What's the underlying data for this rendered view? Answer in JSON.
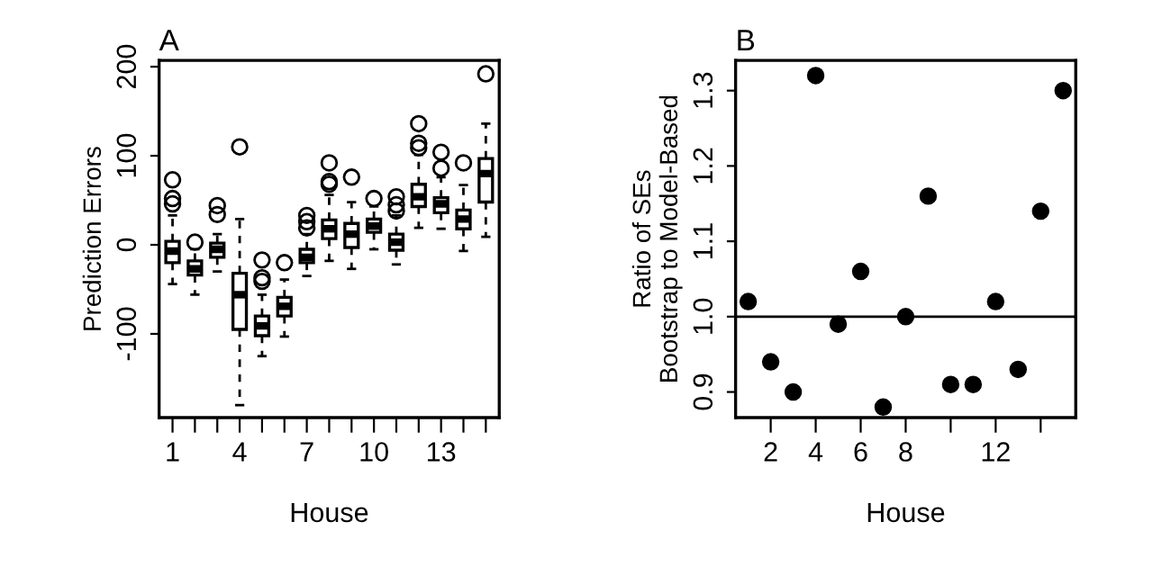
{
  "chart_data": [
    {
      "type": "box",
      "title": "A",
      "xlabel": "House",
      "ylabel": "Prediction Errors",
      "categories": [
        "1",
        null,
        null,
        "4",
        null,
        null,
        "7",
        null,
        null,
        "10",
        null,
        null,
        "13",
        null,
        null
      ],
      "ylim": [
        -194,
        207
      ],
      "yticks": [
        -100,
        0,
        100,
        200
      ],
      "grid": false,
      "color": "#000000",
      "boxes": [
        {
          "low": -44,
          "q1": -20,
          "median": -7,
          "q3": 4,
          "high": 33,
          "outliers": [
            73,
            52,
            46
          ]
        },
        {
          "low": -56,
          "q1": -34,
          "median": -27,
          "q3": -18,
          "high": -5,
          "outliers": [
            3
          ]
        },
        {
          "low": -30,
          "q1": -14,
          "median": -5,
          "q3": 2,
          "high": 12,
          "outliers": [
            44,
            34
          ]
        },
        {
          "low": -180,
          "q1": -95,
          "median": -56,
          "q3": -32,
          "high": 29,
          "outliers": [
            110
          ]
        },
        {
          "low": -125,
          "q1": -102,
          "median": -91,
          "q3": -80,
          "high": -56,
          "outliers": [
            -41,
            -37,
            -17
          ]
        },
        {
          "low": -103,
          "q1": -80,
          "median": -69,
          "q3": -59,
          "high": -39,
          "outliers": [
            -20
          ]
        },
        {
          "low": -35,
          "q1": -20,
          "median": -14,
          "q3": -5,
          "high": 12,
          "outliers": [
            19,
            26,
            33
          ]
        },
        {
          "low": -18,
          "q1": 7,
          "median": 18,
          "q3": 28,
          "high": 56,
          "outliers": [
            68,
            71,
            92
          ]
        },
        {
          "low": -27,
          "q1": -3,
          "median": 12,
          "q3": 24,
          "high": 48,
          "outliers": [
            76
          ]
        },
        {
          "low": -5,
          "q1": 14,
          "median": 21,
          "q3": 29,
          "high": 43,
          "outliers": [
            52
          ]
        },
        {
          "low": -22,
          "q1": -6,
          "median": 3,
          "q3": 12,
          "high": 33,
          "outliers": [
            38,
            45,
            54
          ]
        },
        {
          "low": 19,
          "q1": 43,
          "median": 54,
          "q3": 68,
          "high": 101,
          "outliers": [
            109,
            114,
            136
          ]
        },
        {
          "low": 18,
          "q1": 36,
          "median": 46,
          "q3": 53,
          "high": 76,
          "outliers": [
            86,
            104
          ]
        },
        {
          "low": -7,
          "q1": 18,
          "median": 29,
          "q3": 39,
          "high": 67,
          "outliers": [
            92
          ]
        },
        {
          "low": 9,
          "q1": 48,
          "median": 80,
          "q3": 97,
          "high": 136,
          "outliers": [
            192
          ]
        }
      ]
    },
    {
      "type": "scatter",
      "title": "B",
      "xlabel": "House",
      "ylabel": "Ratio of SEs\nBootstrap to Model-Based",
      "marker": "circle",
      "color": "#000000",
      "grid": false,
      "x": [
        1,
        2,
        3,
        4,
        5,
        6,
        7,
        8,
        9,
        10,
        11,
        12,
        13,
        14,
        15
      ],
      "values": [
        1.02,
        0.94,
        0.9,
        1.32,
        0.99,
        1.06,
        0.88,
        1.0,
        1.16,
        0.91,
        0.91,
        1.02,
        0.93,
        1.14,
        1.3
      ],
      "xlim": [
        0.44,
        15.56
      ],
      "ylim": [
        0.866,
        1.34
      ],
      "xticks": [
        2,
        4,
        6,
        8,
        {
          "value": 10,
          "label": null
        },
        12,
        {
          "value": 14,
          "label": null
        }
      ],
      "yticks": [
        {
          "value": 0.9,
          "label": "0.9"
        },
        {
          "value": 1.0,
          "label": "1.0"
        },
        {
          "value": 1.1,
          "label": "1.1"
        },
        {
          "value": 1.2,
          "label": "1.2"
        },
        {
          "value": 1.3,
          "label": "1.3"
        }
      ],
      "ref_lines": [
        {
          "axis": "y",
          "value": 1.0,
          "color": "#000000"
        }
      ]
    }
  ]
}
